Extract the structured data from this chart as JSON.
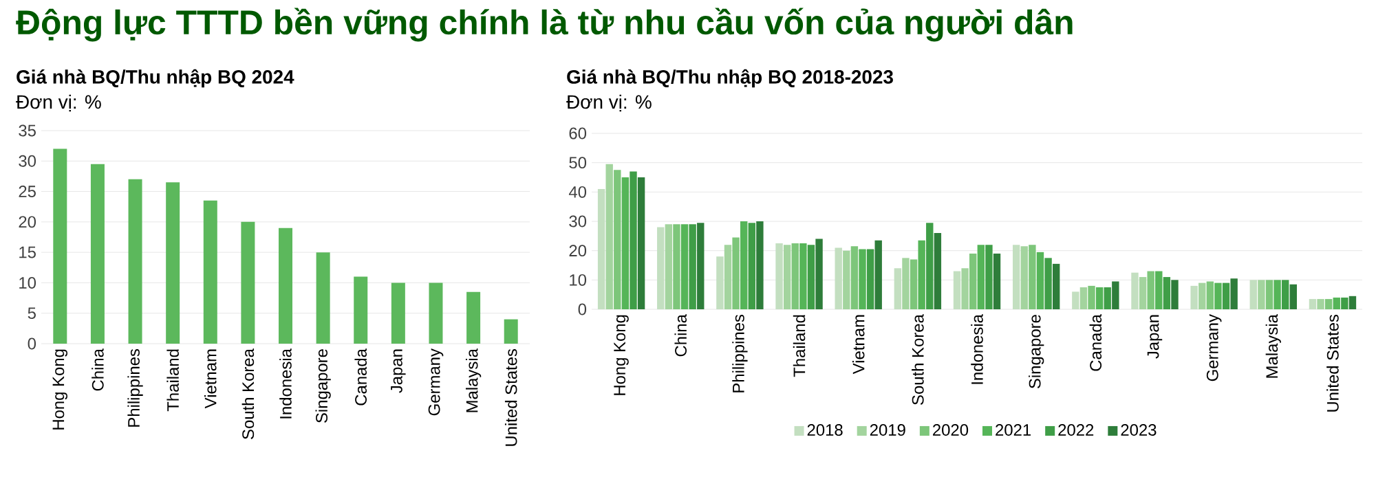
{
  "chart_data": [
    {
      "type": "bar",
      "title": "Giá nhà BQ/Thu nhập BQ 2024",
      "subtitle": "Đơn vị: %",
      "annotations": [
        "Động lực TTTD bền vững chính là từ nhu cầu vốn của người dân"
      ],
      "categories": [
        "Hong Kong",
        "China",
        "Philippines",
        "Thailand",
        "Vietnam",
        "South Korea",
        "Indonesia",
        "Singapore",
        "Canada",
        "Japan",
        "Germany",
        "Malaysia",
        "United States"
      ],
      "values": [
        32,
        29.5,
        27,
        26.5,
        23.5,
        20,
        19,
        15,
        11,
        10,
        10,
        8.5,
        4
      ],
      "color": "#5cb85c",
      "ylim": [
        0,
        35
      ],
      "yticks": [
        0,
        5,
        10,
        15,
        20,
        25,
        30,
        35
      ],
      "grid": "y",
      "legend": false
    },
    {
      "type": "bar",
      "title": "Giá nhà BQ/Thu nhập BQ 2018-2023",
      "subtitle": "Đơn vị: %",
      "categories": [
        "Hong Kong",
        "China",
        "Philippines",
        "Thailand",
        "Vietnam",
        "South Korea",
        "Indonesia",
        "Singapore",
        "Canada",
        "Japan",
        "Germany",
        "Malaysia",
        "United States"
      ],
      "series": [
        {
          "name": "2018",
          "color": "#c3dfc0",
          "values": [
            41,
            28,
            18,
            22.5,
            21,
            14,
            13,
            22,
            6,
            12.5,
            8,
            10,
            3.5
          ]
        },
        {
          "name": "2019",
          "color": "#a3d49e",
          "values": [
            49.5,
            29,
            22,
            22,
            20,
            17.5,
            14,
            21.5,
            7.5,
            11,
            9,
            10,
            3.5
          ]
        },
        {
          "name": "2020",
          "color": "#7dc67a",
          "values": [
            47.5,
            29,
            24.5,
            22.5,
            21.5,
            17,
            19,
            22,
            8,
            13,
            9.5,
            10,
            3.5
          ]
        },
        {
          "name": "2021",
          "color": "#55b558",
          "values": [
            45,
            29,
            30,
            22.5,
            20.5,
            23.5,
            22,
            19.5,
            7.5,
            13,
            9,
            10,
            4
          ]
        },
        {
          "name": "2022",
          "color": "#3f9e47",
          "values": [
            47,
            29,
            29.5,
            22,
            20.5,
            29.5,
            22,
            17.5,
            7.5,
            11,
            9,
            10,
            4
          ]
        },
        {
          "name": "2023",
          "color": "#2e7d3a",
          "values": [
            45,
            29.5,
            30,
            24,
            23.5,
            26,
            19,
            15.5,
            9.5,
            10,
            10.5,
            8.5,
            4.5
          ]
        }
      ],
      "ylim": [
        0,
        60
      ],
      "yticks": [
        0,
        10,
        20,
        30,
        40,
        50,
        60
      ],
      "grid": "y",
      "legend": "bottom"
    }
  ]
}
